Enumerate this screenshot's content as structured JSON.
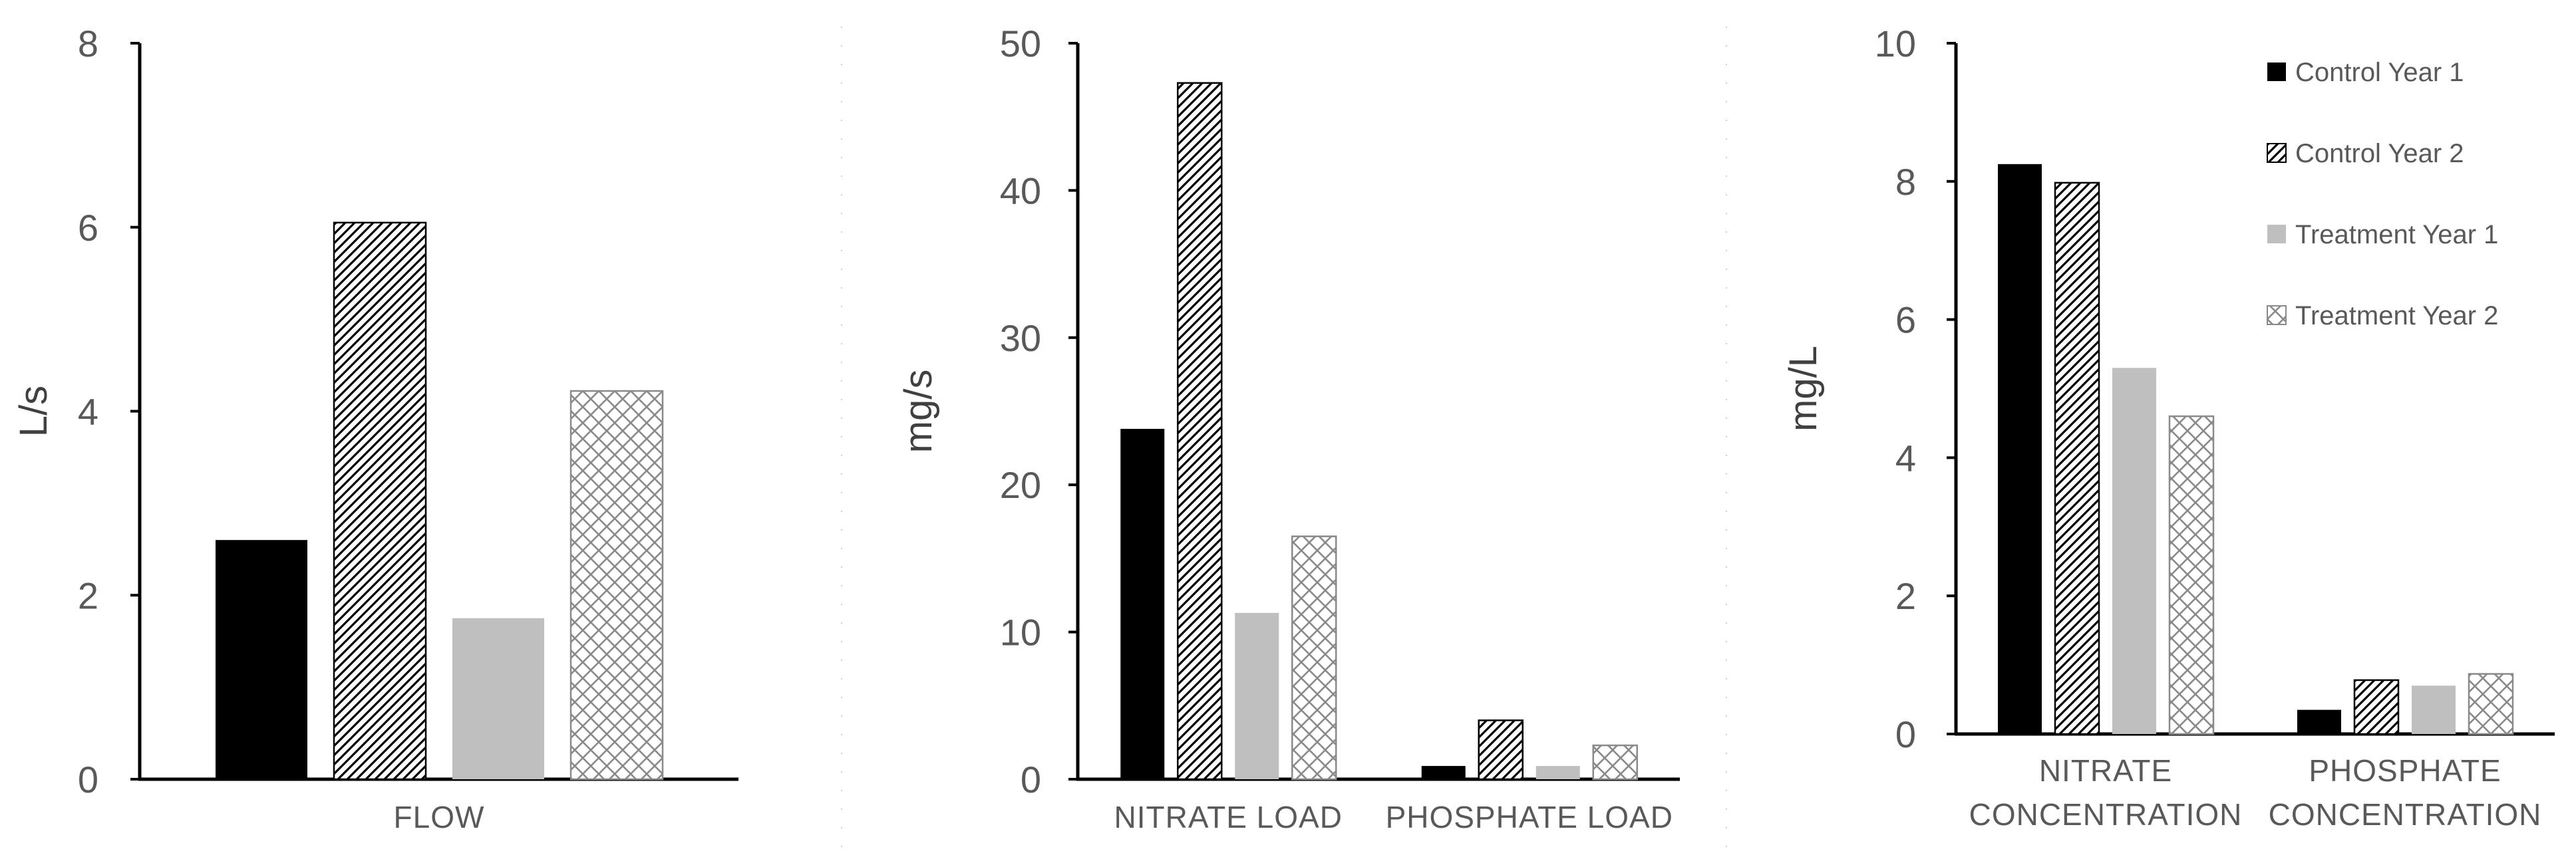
{
  "chart_data": [
    {
      "type": "bar",
      "ylabel": "L/s",
      "ylim": [
        0,
        8
      ],
      "yticks": [
        "0",
        "2",
        "4",
        "6",
        "8"
      ],
      "categories": [
        "FLOW"
      ],
      "series": [
        {
          "name": "Control Year 1",
          "values": [
            2.6
          ]
        },
        {
          "name": "Control Year 2",
          "values": [
            6.05
          ]
        },
        {
          "name": "Treatment Year 1",
          "values": [
            1.75
          ]
        },
        {
          "name": "Treatment Year 2",
          "values": [
            4.22
          ]
        }
      ]
    },
    {
      "type": "bar",
      "ylabel": "mg/s",
      "ylim": [
        0,
        50
      ],
      "yticks": [
        "0",
        "10",
        "20",
        "30",
        "40",
        "50"
      ],
      "categories": [
        "NITRATE LOAD",
        "PHOSPHATE LOAD"
      ],
      "series": [
        {
          "name": "Control Year 1",
          "values": [
            23.8,
            0.9
          ]
        },
        {
          "name": "Control Year 2",
          "values": [
            47.3,
            4.0
          ]
        },
        {
          "name": "Treatment Year 1",
          "values": [
            11.3,
            0.9
          ]
        },
        {
          "name": "Treatment Year 2",
          "values": [
            16.5,
            2.3
          ]
        }
      ]
    },
    {
      "type": "bar",
      "ylabel": "mg/L",
      "ylim": [
        0,
        10
      ],
      "yticks": [
        "0",
        "2",
        "4",
        "6",
        "8",
        "10"
      ],
      "categories": [
        "NITRATE CONCENTRATION",
        "PHOSPHATE CONCENTRATION"
      ],
      "category_lines": [
        [
          "NITRATE",
          "CONCENTRATION"
        ],
        [
          "PHOSPHATE",
          "CONCENTRATION"
        ]
      ],
      "series": [
        {
          "name": "Control Year 1",
          "values": [
            8.25,
            0.35
          ]
        },
        {
          "name": "Control Year 2",
          "values": [
            7.98,
            0.78
          ]
        },
        {
          "name": "Treatment Year 1",
          "values": [
            5.3,
            0.7
          ]
        },
        {
          "name": "Treatment Year 2",
          "values": [
            4.6,
            0.87
          ]
        }
      ],
      "legend": {
        "position": "top-right",
        "entries": [
          "Control Year 1",
          "Control Year 2",
          "Treatment Year 1",
          "Treatment Year 2"
        ]
      }
    }
  ],
  "series_styles": [
    {
      "name": "Control Year 1",
      "fill": "#000000",
      "pattern": "solid"
    },
    {
      "name": "Control Year 2",
      "fill": "#000000",
      "pattern": "diagonal-hatch"
    },
    {
      "name": "Treatment Year 1",
      "fill": "#bfbfbf",
      "pattern": "solid"
    },
    {
      "name": "Treatment Year 2",
      "fill": "#808080",
      "pattern": "crosshatch"
    }
  ]
}
